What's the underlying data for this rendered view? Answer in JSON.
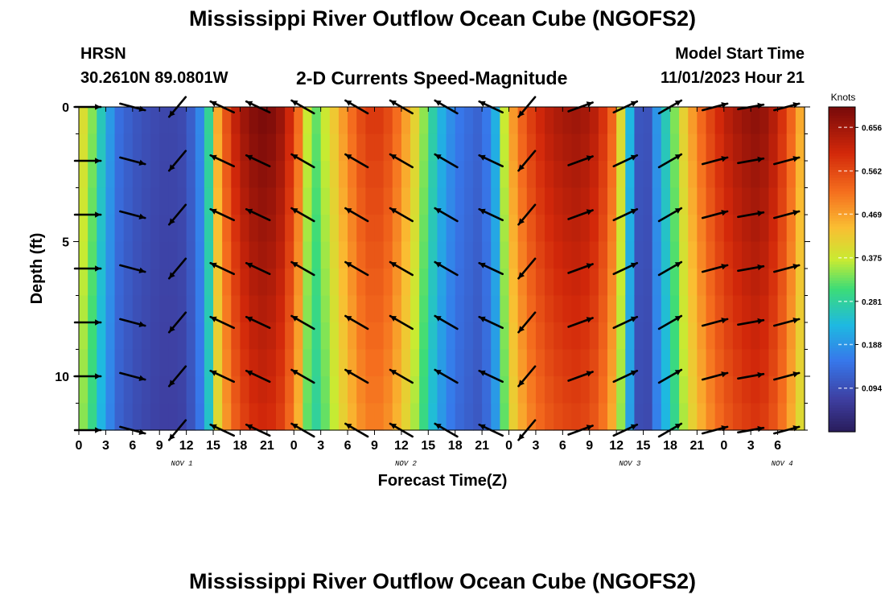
{
  "header": {
    "title": "Mississippi River Outflow Ocean Cube (NGOFS2)",
    "station": "HRSN",
    "coords": "30.2610N  89.0801W",
    "subtitle": "2-D Currents Speed-Magnitude",
    "model_start_label": "Model Start Time",
    "model_start_value": "11/01/2023 Hour 21"
  },
  "footer": {
    "title": "Mississippi River Outflow Ocean Cube (NGOFS2)"
  },
  "chart_data": {
    "type": "heatmap",
    "title": "2-D Currents Speed-Magnitude",
    "xlabel": "Forecast Time(Z)",
    "ylabel": "Depth (ft)",
    "x_range_hours": [
      0,
      81
    ],
    "y_range_ft": [
      0,
      12
    ],
    "y_ticks": [
      0,
      5,
      10
    ],
    "x_tick_labels": [
      "0",
      "3",
      "6",
      "9",
      "12",
      "15",
      "18",
      "21",
      "0",
      "3",
      "6",
      "9",
      "12",
      "15",
      "18",
      "21",
      "0",
      "3",
      "6",
      "9",
      "12",
      "15",
      "18",
      "21",
      "0",
      "3",
      "6"
    ],
    "day_labels": [
      {
        "label": "NOV 1",
        "hour": 11.5
      },
      {
        "label": "NOV 2",
        "hour": 36.5
      },
      {
        "label": "NOV 3",
        "hour": 61.5
      },
      {
        "label": "NOV 4",
        "hour": 78.5
      }
    ],
    "colorbar": {
      "label": "Knots",
      "min": 0.0,
      "max": 0.7,
      "ticks": [
        0.094,
        0.188,
        0.281,
        0.375,
        0.469,
        0.562,
        0.656
      ]
    },
    "speed_profile_hours": [
      0,
      1.5,
      3,
      4.5,
      6,
      8,
      10,
      12,
      14,
      15.5,
      17,
      19,
      21,
      23,
      24.5,
      26,
      28,
      30,
      32,
      34,
      36,
      38,
      40,
      42,
      44,
      45,
      46.5,
      48,
      50,
      52,
      54,
      56,
      58,
      60,
      61,
      62,
      63,
      64,
      66,
      68,
      70,
      72,
      74,
      76,
      78,
      80,
      81
    ],
    "speed_profile_knots": [
      0.42,
      0.34,
      0.22,
      0.14,
      0.11,
      0.09,
      0.08,
      0.09,
      0.2,
      0.46,
      0.6,
      0.68,
      0.7,
      0.65,
      0.52,
      0.3,
      0.4,
      0.5,
      0.58,
      0.58,
      0.5,
      0.38,
      0.24,
      0.16,
      0.13,
      0.12,
      0.22,
      0.45,
      0.56,
      0.62,
      0.65,
      0.66,
      0.62,
      0.5,
      0.3,
      0.16,
      0.05,
      0.15,
      0.3,
      0.45,
      0.55,
      0.62,
      0.66,
      0.68,
      0.62,
      0.5,
      0.42
    ],
    "vector_rows_ft": [
      0,
      2,
      4,
      6,
      8,
      10,
      12
    ],
    "vector_cols_hours": [
      1,
      6,
      11,
      16,
      20,
      25,
      31,
      36,
      41,
      46,
      50,
      56,
      61,
      66,
      71,
      75,
      79
    ],
    "vector_angles_deg": [
      0,
      -15,
      230,
      155,
      155,
      150,
      150,
      150,
      150,
      155,
      230,
      20,
      25,
      30,
      15,
      10,
      15
    ]
  }
}
